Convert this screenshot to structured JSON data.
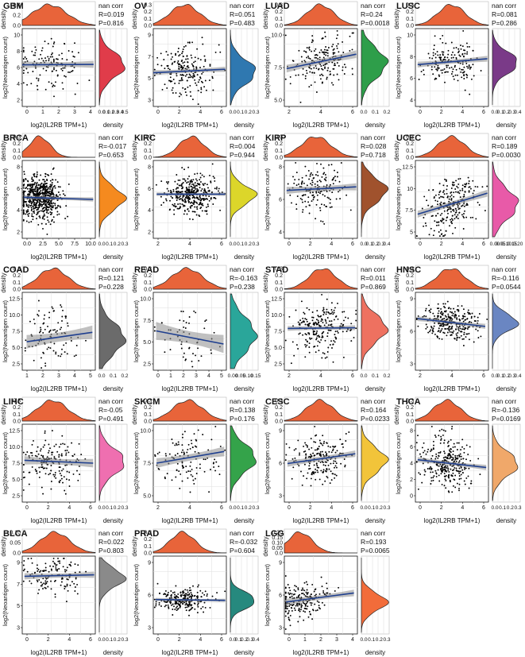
{
  "figure": {
    "colors": {
      "top_density_fill": "#e8643a",
      "scatter_point": "#000000",
      "regression_line": "#1f3f8f",
      "confidence_band": "#8c8c8c",
      "grid": "#dddddd"
    },
    "stat_label": "nan corr",
    "x_axis_label": "log2(IL2RB TPM+1)",
    "y_axis_label": "log2(Neoantigen count)",
    "density_label": "density"
  },
  "chart_data": [
    {
      "type": "scatter",
      "title": "GBM",
      "xlabel": "log2(IL2RB TPM+1)",
      "ylabel": "log2(Neoantigen count)",
      "stat": "nan corr",
      "r": "R=0.019",
      "p": "P=0.816",
      "xlim": [
        0,
        4.3
      ],
      "ylim": [
        1,
        11
      ],
      "xticks": [
        "0",
        "1",
        "2",
        "3",
        "4"
      ],
      "yticks": [
        "2",
        "4",
        "6",
        "8",
        "10"
      ],
      "top_yticks": [
        "0.0",
        "0.2",
        "0.4"
      ],
      "side_xticks": [
        "0.0",
        "0.1",
        "0.2",
        "0.3",
        "0.4",
        "0.5"
      ],
      "side_color": "#e03c4a",
      "n": 130,
      "mean_y": 6.3,
      "sd_y": 1.6,
      "mean_x": 1.6,
      "sd_x": 1.0,
      "line": {
        "x0": 0,
        "y0": 6.35,
        "x1": 4.2,
        "y1": 6.4
      },
      "ci": 0.45
    },
    {
      "type": "scatter",
      "title": "OV",
      "xlabel": "log2(IL2RB TPM+1)",
      "ylabel": "log2(Neoantigen count)",
      "stat": "nan corr",
      "r": "R=0.051",
      "p": "P=0.483",
      "xlim": [
        0,
        6.5
      ],
      "ylim": [
        2,
        11
      ],
      "xticks": [
        "0",
        "2",
        "4",
        "6"
      ],
      "yticks": [
        "3",
        "5",
        "7",
        "9"
      ],
      "top_yticks": [
        "0.0",
        "0.1",
        "0.2",
        "0.3"
      ],
      "side_xticks": [
        "0.0",
        "0.1",
        "0.2",
        "0.3"
      ],
      "side_color": "#2f78b0",
      "n": 200,
      "mean_y": 6.0,
      "sd_y": 1.4,
      "mean_x": 2.8,
      "sd_x": 1.3,
      "line": {
        "x0": 0,
        "y0": 5.9,
        "x1": 6.4,
        "y1": 6.3
      },
      "ci": 0.3
    },
    {
      "type": "scatter",
      "title": "LUAD",
      "xlabel": "log2(IL2RB TPM+1)",
      "ylabel": "log2(Neoantigen count)",
      "stat": "nan corr",
      "r": "R=0.24",
      "p": "P=0.0018",
      "xlim": [
        0,
        6.5
      ],
      "ylim": [
        4,
        11
      ],
      "xticks": [
        "2",
        "4",
        "6"
      ],
      "yticks": [
        "5.0",
        "7.5",
        "10.0"
      ],
      "top_yticks": [
        "0.0",
        "0.1",
        "0.2",
        "0.3"
      ],
      "side_xticks": [
        "0.0",
        "0.1",
        "0.2"
      ],
      "side_color": "#2e9e4a",
      "n": 180,
      "mean_y": 7.9,
      "sd_y": 1.3,
      "mean_x": 3.2,
      "sd_x": 1.2,
      "line": {
        "x0": 0.2,
        "y0": 7.4,
        "x1": 6.4,
        "y1": 8.7
      },
      "ci": 0.35
    },
    {
      "type": "scatter",
      "title": "LUSC",
      "xlabel": "log2(IL2RB TPM+1)",
      "ylabel": "log2(Neoantigen count)",
      "stat": "nan corr",
      "r": "R=0.081",
      "p": "P=0.286",
      "xlim": [
        0,
        6.5
      ],
      "ylim": [
        3,
        11
      ],
      "xticks": [
        "0",
        "2",
        "4",
        "6"
      ],
      "yticks": [
        "4",
        "6",
        "8",
        "10"
      ],
      "top_yticks": [
        "0.0",
        "0.1",
        "0.2",
        "0.3"
      ],
      "side_xticks": [
        "0.0",
        "0.1",
        "0.2",
        "0.3",
        "0.4"
      ],
      "side_color": "#7a3a88",
      "n": 170,
      "mean_y": 7.5,
      "sd_y": 1.1,
      "mean_x": 3.2,
      "sd_x": 1.2,
      "line": {
        "x0": 0.2,
        "y0": 7.3,
        "x1": 6.4,
        "y1": 7.9
      },
      "ci": 0.3
    },
    {
      "type": "scatter",
      "title": "BRCA",
      "xlabel": "log2(IL2RB TPM+1)",
      "ylabel": "log2(Neoantigen count)",
      "stat": "nan corr",
      "r": "R=-0.017",
      "p": "P=0.653",
      "xlim": [
        0,
        10.5
      ],
      "ylim": [
        1,
        10
      ],
      "xticks": [
        "0.0",
        "2.5",
        "5.0",
        "7.5",
        "10.0"
      ],
      "yticks": [
        "2",
        "4",
        "6",
        "8"
      ],
      "top_yticks": [
        "0.0",
        "0.1",
        "0.2",
        "0.3"
      ],
      "side_xticks": [
        "0.0",
        "0.1",
        "0.2",
        "0.3"
      ],
      "side_color": "#f58a1f",
      "n": 620,
      "mean_y": 5.6,
      "sd_y": 1.3,
      "mean_x": 2.5,
      "sd_x": 1.5,
      "line": {
        "x0": 0.2,
        "y0": 5.75,
        "x1": 10.2,
        "y1": 5.5
      },
      "ci": 0.25
    },
    {
      "type": "scatter",
      "title": "KIRC",
      "xlabel": "log2(IL2RB TPM+1)",
      "ylabel": "log2(Neoantigen count)",
      "stat": "nan corr",
      "r": "R=0.004",
      "p": "P=0.944",
      "xlim": [
        0.5,
        7
      ],
      "ylim": [
        1,
        10
      ],
      "xticks": [
        "2",
        "4",
        "6"
      ],
      "yticks": [
        "2",
        "4",
        "6",
        "8"
      ],
      "top_yticks": [
        "0.0",
        "0.1",
        "0.2",
        "0.3"
      ],
      "side_xticks": [
        "0.0",
        "0.1",
        "0.2",
        "0.3"
      ],
      "side_color": "#dcd62a",
      "n": 380,
      "mean_y": 6.0,
      "sd_y": 1.1,
      "mean_x": 3.9,
      "sd_x": 1.1,
      "line": {
        "x0": 0.8,
        "y0": 6.1,
        "x1": 6.9,
        "y1": 6.1
      },
      "ci": 0.2
    },
    {
      "type": "scatter",
      "title": "KIRP",
      "xlabel": "log2(IL2RB TPM+1)",
      "ylabel": "log2(Neoantigen count)",
      "stat": "nan corr",
      "r": "R=0.028",
      "p": "P=0.718",
      "xlim": [
        0,
        6.5
      ],
      "ylim": [
        2.5,
        9
      ],
      "xticks": [
        "0",
        "2",
        "4",
        "6"
      ],
      "yticks": [
        "4",
        "6",
        "8"
      ],
      "top_yticks": [
        "0.0",
        "0.1",
        "0.2",
        "0.3"
      ],
      "side_xticks": [
        "0.0",
        "0.1",
        "0.2",
        "0.3",
        "0.4"
      ],
      "side_color": "#a0522d",
      "n": 160,
      "mean_y": 6.5,
      "sd_y": 1.0,
      "mean_x": 2.8,
      "sd_x": 1.3,
      "line": {
        "x0": 0.2,
        "y0": 6.5,
        "x1": 6.4,
        "y1": 6.8
      },
      "ci": 0.3
    },
    {
      "type": "scatter",
      "title": "UCEC",
      "xlabel": "log2(IL2RB TPM+1)",
      "ylabel": "log2(Neoantigen count)",
      "stat": "nan corr",
      "r": "R=0.189",
      "p": "P=0.0030",
      "xlim": [
        0,
        6.5
      ],
      "ylim": [
        3,
        13
      ],
      "xticks": [
        "0",
        "2",
        "4",
        "6"
      ],
      "yticks": [
        "5",
        "7.5",
        "10",
        "12.5"
      ],
      "top_yticks": [
        "0.0",
        "0.1",
        "0.2",
        "0.3"
      ],
      "side_xticks": [
        "0.00",
        "0.05",
        "0.10",
        "0.15",
        "0.20"
      ],
      "side_color": "#e85aa8",
      "n": 240,
      "mean_y": 7.4,
      "sd_y": 1.9,
      "mean_x": 3.2,
      "sd_x": 1.2,
      "line": {
        "x0": 0.2,
        "y0": 6.1,
        "x1": 6.4,
        "y1": 8.8
      },
      "ci": 0.45
    },
    {
      "type": "scatter",
      "title": "COAD",
      "xlabel": "log2(IL2RB TPM+1)",
      "ylabel": "log2(Neoantigen count)",
      "stat": "nan corr",
      "r": "R=0.121",
      "p": "P=0.228",
      "xlim": [
        0.5,
        5.5
      ],
      "ylim": [
        1.5,
        13
      ],
      "xticks": [
        "1",
        "2",
        "3",
        "4",
        "5"
      ],
      "yticks": [
        "2.5",
        "5.0",
        "7.5",
        "10.0",
        "12.5"
      ],
      "top_yticks": [
        "0.0",
        "0.1",
        "0.2",
        "0.3"
      ],
      "side_xticks": [
        "0.0",
        "0.1",
        "0.2"
      ],
      "side_color": "#6b6b6b",
      "n": 100,
      "mean_y": 6.2,
      "sd_y": 2.2,
      "mean_x": 2.6,
      "sd_x": 1.0,
      "line": {
        "x0": 0.8,
        "y0": 5.7,
        "x1": 5.3,
        "y1": 7.1
      },
      "ci": 1.0
    },
    {
      "type": "scatter",
      "title": "READ",
      "xlabel": "log2(IL2RB TPM+1)",
      "ylabel": "log2(Neoantigen count)",
      "stat": "nan corr",
      "r": "R=-0.163",
      "p": "P=0.238",
      "xlim": [
        0,
        5.2
      ],
      "ylim": [
        1.5,
        11
      ],
      "xticks": [
        "0",
        "1",
        "2",
        "3",
        "4",
        "5"
      ],
      "yticks": [
        "2.5",
        "5.0",
        "7.5",
        "10.0"
      ],
      "top_yticks": [
        "0.0",
        "0.1",
        "0.2",
        "0.3"
      ],
      "side_xticks": [
        "0.00",
        "0.05",
        "0.10",
        "0.15"
      ],
      "side_color": "#2aa69a",
      "n": 55,
      "mean_y": 5.8,
      "sd_y": 2.1,
      "mean_x": 2.4,
      "sd_x": 1.1,
      "line": {
        "x0": 0.2,
        "y0": 6.3,
        "x1": 5.0,
        "y1": 4.7
      },
      "ci": 1.1
    },
    {
      "type": "scatter",
      "title": "STAD",
      "xlabel": "log2(IL2RB TPM+1)",
      "ylabel": "log2(Neoantigen count)",
      "stat": "nan corr",
      "r": "R=0.011",
      "p": "P=0.869",
      "xlim": [
        0.5,
        7
      ],
      "ylim": [
        2,
        13
      ],
      "xticks": [
        "2",
        "4",
        "6"
      ],
      "yticks": [
        "2.5",
        "5.0",
        "7.5",
        "10.0",
        "12.5"
      ],
      "top_yticks": [
        "0.0",
        "0.1",
        "0.2",
        "0.3"
      ],
      "side_xticks": [
        "0.0",
        "0.1",
        "0.2"
      ],
      "side_color": "#ee7160",
      "n": 230,
      "mean_y": 7.9,
      "sd_y": 1.9,
      "mean_x": 3.9,
      "sd_x": 1.2,
      "line": {
        "x0": 0.8,
        "y0": 7.9,
        "x1": 6.8,
        "y1": 8.0
      },
      "ci": 0.35
    },
    {
      "type": "scatter",
      "title": "HNSC",
      "xlabel": "log2(IL2RB TPM+1)",
      "ylabel": "log2(Neoantigen count)",
      "stat": "nan corr",
      "r": "R=-0.116",
      "p": "P=0.0544",
      "xlim": [
        0,
        6.8
      ],
      "ylim": [
        2,
        10
      ],
      "xticks": [
        "2",
        "4",
        "6"
      ],
      "yticks": [
        "3",
        "6",
        "9"
      ],
      "top_yticks": [
        "0.0",
        "0.1",
        "0.2",
        "0.3"
      ],
      "side_xticks": [
        "0.0",
        "0.1",
        "0.2",
        "0.3",
        "0.4"
      ],
      "side_color": "#6a86c2",
      "n": 290,
      "mean_y": 6.9,
      "sd_y": 0.9,
      "mean_x": 3.3,
      "sd_x": 1.3,
      "line": {
        "x0": 0.2,
        "y0": 7.3,
        "x1": 6.5,
        "y1": 6.5
      },
      "ci": 0.25
    },
    {
      "type": "scatter",
      "title": "LIHC",
      "xlabel": "log2(IL2RB TPM+1)",
      "ylabel": "log2(Neoantigen count)",
      "stat": "nan corr",
      "r": "R=-0.05",
      "p": "P=0.491",
      "xlim": [
        0,
        6.8
      ],
      "ylim": [
        2,
        13
      ],
      "xticks": [
        "0",
        "2",
        "4",
        "6"
      ],
      "yticks": [
        "2.5",
        "5.0",
        "7.5",
        "10.0",
        "12.5"
      ],
      "top_yticks": [
        "0.0",
        "0.1",
        "0.2",
        "0.3"
      ],
      "side_xticks": [
        "0.0",
        "0.1",
        "0.2",
        "0.3"
      ],
      "side_color": "#ef6fb0",
      "n": 170,
      "mean_y": 7.7,
      "sd_y": 1.8,
      "mean_x": 2.8,
      "sd_x": 1.4,
      "line": {
        "x0": 0.2,
        "y0": 7.9,
        "x1": 6.6,
        "y1": 7.5
      },
      "ci": 0.6
    },
    {
      "type": "scatter",
      "title": "SKCM",
      "xlabel": "log2(IL2RB TPM+1)",
      "ylabel": "log2(Neoantigen count)",
      "stat": "nan corr",
      "r": "R=0.138",
      "p": "P=0.176",
      "xlim": [
        0,
        6.8
      ],
      "ylim": [
        4,
        12
      ],
      "xticks": [
        "2",
        "4",
        "6"
      ],
      "yticks": [
        "5.0",
        "7.5",
        "10.0"
      ],
      "top_yticks": [
        "0.0",
        "0.1",
        "0.2",
        "0.3"
      ],
      "side_xticks": [
        "0.0",
        "0.1",
        "0.2",
        "0.3"
      ],
      "side_color": "#34a34a",
      "n": 110,
      "mean_y": 8.5,
      "sd_y": 1.4,
      "mean_x": 3.2,
      "sd_x": 1.4,
      "line": {
        "x0": 0.3,
        "y0": 8.0,
        "x1": 6.6,
        "y1": 9.2
      },
      "ci": 0.5
    },
    {
      "type": "scatter",
      "title": "CESC",
      "xlabel": "log2(IL2RB TPM+1)",
      "ylabel": "log2(Neoantigen count)",
      "stat": "nan corr",
      "r": "R=0.164",
      "p": "P=0.0233",
      "xlim": [
        0,
        7
      ],
      "ylim": [
        1.5,
        11
      ],
      "xticks": [
        "0",
        "2",
        "4",
        "6"
      ],
      "yticks": [
        "3",
        "6",
        "9"
      ],
      "top_yticks": [
        "0.0",
        "0.1",
        "0.2",
        "0.3"
      ],
      "side_xticks": [
        "0.0",
        "0.1",
        "0.2",
        "0.3"
      ],
      "side_color": "#f2c43a",
      "n": 200,
      "mean_y": 6.6,
      "sd_y": 1.5,
      "mean_x": 3.4,
      "sd_x": 1.3,
      "line": {
        "x0": 0.3,
        "y0": 6.2,
        "x1": 6.8,
        "y1": 7.4
      },
      "ci": 0.4
    },
    {
      "type": "scatter",
      "title": "THCA",
      "xlabel": "log2(IL2RB TPM+1)",
      "ylabel": "log2(Neoantigen count)",
      "stat": "nan corr",
      "r": "R=-0.136",
      "p": "P=0.0169",
      "xlim": [
        0,
        6.5
      ],
      "ylim": [
        0,
        9
      ],
      "xticks": [
        "0",
        "2",
        "4",
        "6"
      ],
      "yticks": [
        "0",
        "2",
        "4",
        "6",
        "8"
      ],
      "top_yticks": [
        "0.0",
        "0.1",
        "0.2",
        "0.3"
      ],
      "side_xticks": [
        "0.0",
        "0.1",
        "0.2",
        "0.3"
      ],
      "side_color": "#f0a86a",
      "n": 300,
      "mean_y": 4.4,
      "sd_y": 1.4,
      "mean_x": 2.8,
      "sd_x": 1.2,
      "line": {
        "x0": 0.2,
        "y0": 4.9,
        "x1": 6.3,
        "y1": 4.0
      },
      "ci": 0.3
    },
    {
      "type": "scatter",
      "title": "BLCA",
      "xlabel": "log2(IL2RB TPM+1)",
      "ylabel": "log2(Neoantigen count)",
      "stat": "nan corr",
      "r": "R=0.022",
      "p": "P=0.803",
      "xlim": [
        0,
        6.5
      ],
      "ylim": [
        2.5,
        10
      ],
      "xticks": [
        "0",
        "2",
        "4",
        "6"
      ],
      "yticks": [
        "3",
        "5",
        "7",
        "9"
      ],
      "top_yticks": [
        "0.0",
        "0.05",
        "0.10"
      ],
      "side_xticks": [
        "0.0",
        "0.1",
        "0.2",
        "0.3"
      ],
      "side_color": "#8a8a8a",
      "n": 130,
      "mean_y": 7.9,
      "sd_y": 0.9,
      "mean_x": 2.9,
      "sd_x": 1.3,
      "line": {
        "x0": 0.2,
        "y0": 8.05,
        "x1": 6.4,
        "y1": 8.2
      },
      "ci": 0.3
    },
    {
      "type": "scatter",
      "title": "PRAD",
      "xlabel": "log2(IL2RB TPM+1)",
      "ylabel": "log2(Neoantigen count)",
      "stat": "nan corr",
      "r": "R=-0.032",
      "p": "P=0.604",
      "xlim": [
        0,
        6.5
      ],
      "ylim": [
        1.5,
        11
      ],
      "xticks": [
        "0",
        "2",
        "4",
        "6"
      ],
      "yticks": [
        "3",
        "6",
        "9"
      ],
      "top_yticks": [
        "0.0",
        "0.1",
        "0.2",
        "0.3"
      ],
      "side_xticks": [
        "0.0",
        "0.1",
        "0.2",
        "0.3",
        "0.4"
      ],
      "side_color": "#26897e",
      "n": 240,
      "mean_y": 5.6,
      "sd_y": 0.7,
      "mean_x": 2.6,
      "sd_x": 1.1,
      "line": {
        "x0": 0.2,
        "y0": 5.7,
        "x1": 6.4,
        "y1": 5.6
      },
      "ci": 0.2
    },
    {
      "type": "scatter",
      "title": "LGG",
      "xlabel": "log2(IL2RB TPM+1)",
      "ylabel": "log2(Neoantigen count)",
      "stat": "nan corr",
      "r": "R=0.193",
      "p": "P=0.0065",
      "xlim": [
        0,
        4.2
      ],
      "ylim": [
        1.5,
        11
      ],
      "xticks": [
        "0",
        "1",
        "2",
        "3",
        "4"
      ],
      "yticks": [
        "3",
        "6",
        "9"
      ],
      "top_yticks": [
        "0.0",
        "0.05",
        "0.10",
        "0.15",
        "0.20"
      ],
      "side_xticks": [
        "0.0",
        "0.1",
        "0.2",
        "0.3"
      ],
      "side_color": "#f26c3a",
      "n": 200,
      "mean_y": 5.4,
      "sd_y": 1.1,
      "mean_x": 0.9,
      "sd_x": 0.7,
      "line": {
        "x0": 0.1,
        "y0": 5.4,
        "x1": 4.0,
        "y1": 6.5
      },
      "ci": 0.4
    }
  ]
}
